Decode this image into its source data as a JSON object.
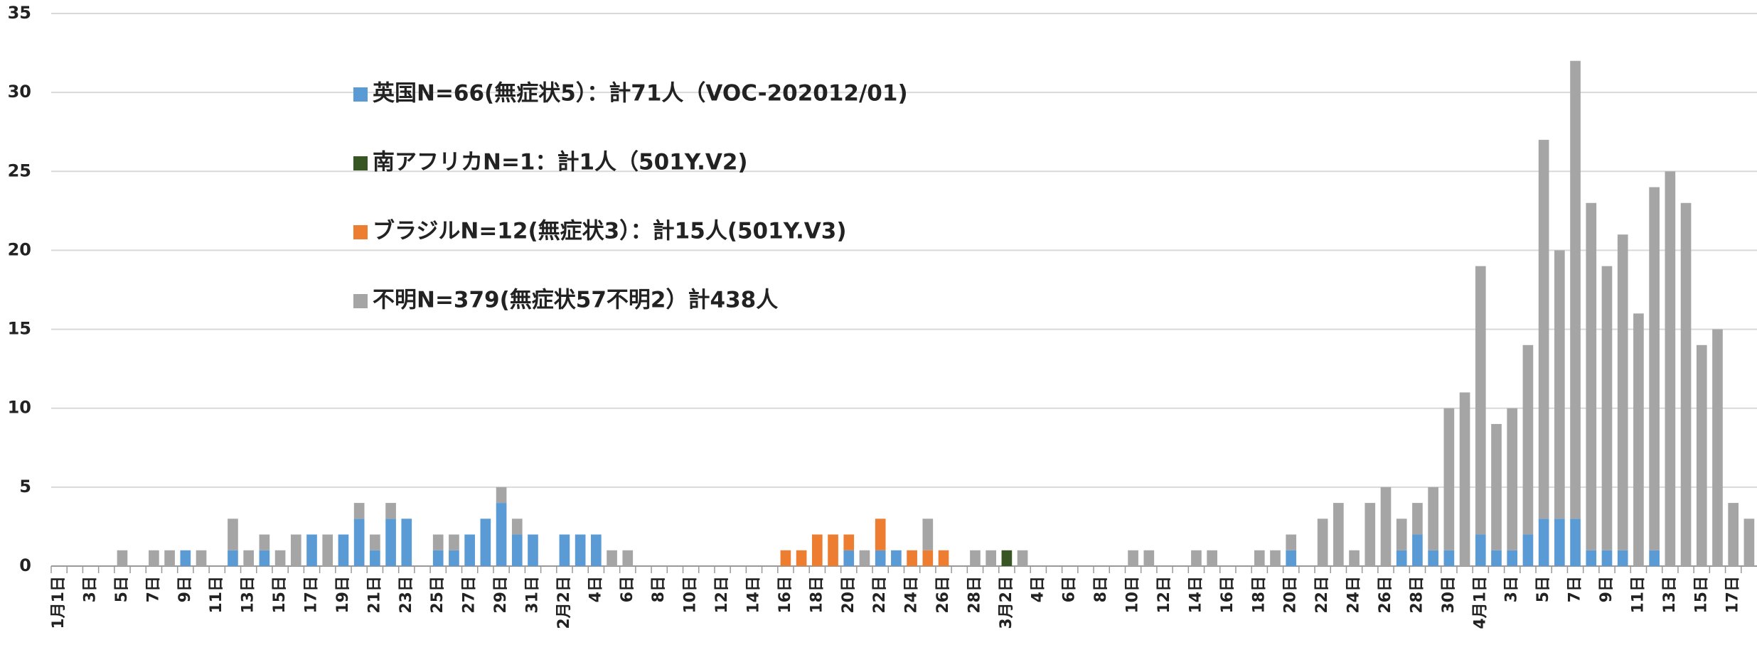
{
  "chart_data": {
    "type": "stacked_bar",
    "categories": [
      "1月1日",
      null,
      "3日",
      null,
      "5日",
      null,
      "7日",
      null,
      "9日",
      null,
      "11日",
      null,
      "13日",
      null,
      "15日",
      null,
      "17日",
      null,
      "19日",
      null,
      "21日",
      null,
      "23日",
      null,
      "25日",
      null,
      "27日",
      null,
      "29日",
      null,
      "31日",
      null,
      "2月2日",
      null,
      "4日",
      null,
      "6日",
      null,
      "8日",
      null,
      "10日",
      null,
      "12日",
      null,
      "14日",
      null,
      "16日",
      null,
      "18日",
      null,
      "20日",
      null,
      "22日",
      null,
      "24日",
      null,
      "26日",
      null,
      "28日",
      null,
      "3月2日",
      null,
      "4日",
      null,
      "6日",
      null,
      "8日",
      null,
      "10日",
      null,
      "12日",
      null,
      "14日",
      null,
      "16日",
      null,
      "18日",
      null,
      "20日",
      null,
      "22日",
      null,
      "24日",
      null,
      "26日",
      null,
      "28日",
      null,
      "30日",
      null,
      "4月1日",
      null,
      "3日",
      null,
      "5日",
      null,
      "7日",
      null,
      "9日",
      null,
      "11日",
      null,
      "13日",
      null,
      "15日",
      null,
      "17日",
      null
    ],
    "series": [
      {
        "name": "英国N=66(無症状5）：計71人（VOC-202012/01)",
        "color": "#5b9bd5",
        "values": [
          0,
          0,
          0,
          0,
          0,
          0,
          0,
          0,
          1,
          0,
          0,
          1,
          0,
          1,
          0,
          0,
          2,
          0,
          2,
          3,
          1,
          3,
          3,
          0,
          1,
          1,
          2,
          3,
          4,
          2,
          2,
          0,
          2,
          2,
          2,
          0,
          0,
          0,
          0,
          0,
          0,
          0,
          0,
          0,
          0,
          0,
          0,
          0,
          0,
          0,
          1,
          0,
          1,
          1,
          0,
          0,
          0,
          0,
          0,
          0,
          0,
          0,
          0,
          0,
          0,
          0,
          0,
          0,
          0,
          0,
          0,
          0,
          0,
          0,
          0,
          0,
          0,
          0,
          1,
          0,
          0,
          0,
          0,
          0,
          0,
          1,
          2,
          1,
          1,
          0,
          2,
          1,
          1,
          2,
          3,
          3,
          3,
          1,
          1,
          1,
          0,
          1,
          0,
          0,
          0,
          0,
          0,
          0
        ]
      },
      {
        "name": "南アフリカN=1：計1人（501Y.V2)",
        "color": "#375623",
        "values": [
          0,
          0,
          0,
          0,
          0,
          0,
          0,
          0,
          0,
          0,
          0,
          0,
          0,
          0,
          0,
          0,
          0,
          0,
          0,
          0,
          0,
          0,
          0,
          0,
          0,
          0,
          0,
          0,
          0,
          0,
          0,
          0,
          0,
          0,
          0,
          0,
          0,
          0,
          0,
          0,
          0,
          0,
          0,
          0,
          0,
          0,
          0,
          0,
          0,
          0,
          0,
          0,
          0,
          0,
          0,
          0,
          0,
          0,
          0,
          0,
          1,
          0,
          0,
          0,
          0,
          0,
          0,
          0,
          0,
          0,
          0,
          0,
          0,
          0,
          0,
          0,
          0,
          0,
          0,
          0,
          0,
          0,
          0,
          0,
          0,
          0,
          0,
          0,
          0,
          0,
          0,
          0,
          0,
          0,
          0,
          0,
          0,
          0,
          0,
          0,
          0,
          0,
          0,
          0,
          0,
          0,
          0,
          0
        ]
      },
      {
        "name": "ブラジルN=12(無症状3）：計15人(501Y.V3)",
        "color": "#ed7d31",
        "values": [
          0,
          0,
          0,
          0,
          0,
          0,
          0,
          0,
          0,
          0,
          0,
          0,
          0,
          0,
          0,
          0,
          0,
          0,
          0,
          0,
          0,
          0,
          0,
          0,
          0,
          0,
          0,
          0,
          0,
          0,
          0,
          0,
          0,
          0,
          0,
          0,
          0,
          0,
          0,
          0,
          0,
          0,
          0,
          0,
          0,
          0,
          1,
          1,
          2,
          2,
          1,
          0,
          2,
          0,
          1,
          1,
          1,
          0,
          0,
          0,
          0,
          0,
          0,
          0,
          0,
          0,
          0,
          0,
          0,
          0,
          0,
          0,
          0,
          0,
          0,
          0,
          0,
          0,
          0,
          0,
          0,
          0,
          0,
          0,
          0,
          0,
          0,
          0,
          0,
          0,
          0,
          0,
          0,
          0,
          0,
          0,
          0,
          0,
          0,
          0,
          0,
          0,
          0,
          0,
          0,
          0,
          0,
          0
        ]
      },
      {
        "name": "不明N=379(無症状57不明2）計438人",
        "color": "#a5a5a5",
        "values": [
          0,
          0,
          0,
          0,
          1,
          0,
          1,
          1,
          0,
          1,
          0,
          2,
          1,
          1,
          1,
          2,
          0,
          2,
          0,
          1,
          1,
          1,
          0,
          0,
          1,
          1,
          0,
          0,
          1,
          1,
          0,
          0,
          0,
          0,
          0,
          1,
          1,
          0,
          0,
          0,
          0,
          0,
          0,
          0,
          0,
          0,
          0,
          0,
          0,
          0,
          0,
          1,
          0,
          0,
          0,
          2,
          0,
          0,
          1,
          1,
          0,
          1,
          0,
          0,
          0,
          0,
          0,
          0,
          1,
          1,
          0,
          0,
          1,
          1,
          0,
          0,
          1,
          1,
          1,
          0,
          3,
          4,
          1,
          4,
          5,
          2,
          2,
          4,
          9,
          11,
          17,
          8,
          9,
          12,
          24,
          17,
          29,
          22,
          18,
          20,
          16,
          23,
          25,
          23,
          14,
          15,
          4,
          3
        ]
      }
    ],
    "ylim": [
      0,
      35
    ],
    "yticks": [
      0,
      5,
      10,
      15,
      20,
      25,
      30,
      35
    ],
    "grid": true
  }
}
